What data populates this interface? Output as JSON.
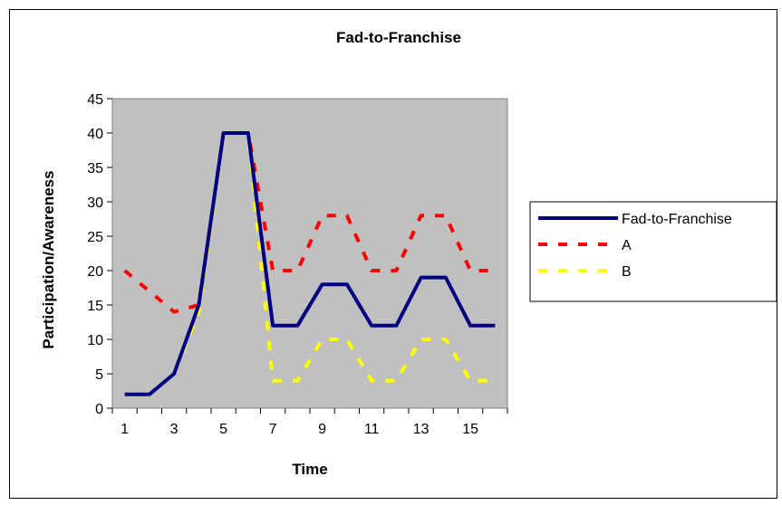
{
  "chart_data": {
    "type": "line",
    "title": "Fad-to-Franchise",
    "xlabel": "Time",
    "ylabel": "Participation/Awareness",
    "x": [
      1,
      2,
      3,
      4,
      5,
      6,
      7,
      8,
      9,
      10,
      11,
      12,
      13,
      14,
      15,
      16
    ],
    "x_tick_labels": [
      "1",
      "3",
      "5",
      "7",
      "9",
      "11",
      "13",
      "15"
    ],
    "x_tick_values": [
      1,
      3,
      5,
      7,
      9,
      11,
      13,
      15
    ],
    "ylim": [
      0,
      45
    ],
    "y_ticks": [
      "0",
      "5",
      "10",
      "15",
      "20",
      "25",
      "30",
      "35",
      "40",
      "45"
    ],
    "y_tick_values": [
      0,
      5,
      10,
      15,
      20,
      25,
      30,
      35,
      40,
      45
    ],
    "grid": false,
    "plot_background": "#c0c0c0",
    "legend_position": "right",
    "series": [
      {
        "name": "Fad-to-Franchise",
        "color": "#000080",
        "style": "solid",
        "values": [
          2,
          2,
          5,
          15,
          40,
          40,
          12,
          12,
          18,
          18,
          12,
          12,
          19,
          19,
          12,
          12
        ]
      },
      {
        "name": "A",
        "color": "#ff0000",
        "style": "dashed",
        "values": [
          20,
          17,
          14,
          15,
          40,
          40,
          20,
          20,
          28,
          28,
          20,
          20,
          28,
          28,
          20,
          20
        ]
      },
      {
        "name": "B",
        "color": "#ffff00",
        "style": "dashed",
        "values": [
          2,
          2,
          5,
          14,
          40,
          40,
          4,
          4,
          10,
          10,
          4,
          4,
          10,
          10,
          4,
          4
        ]
      }
    ]
  }
}
